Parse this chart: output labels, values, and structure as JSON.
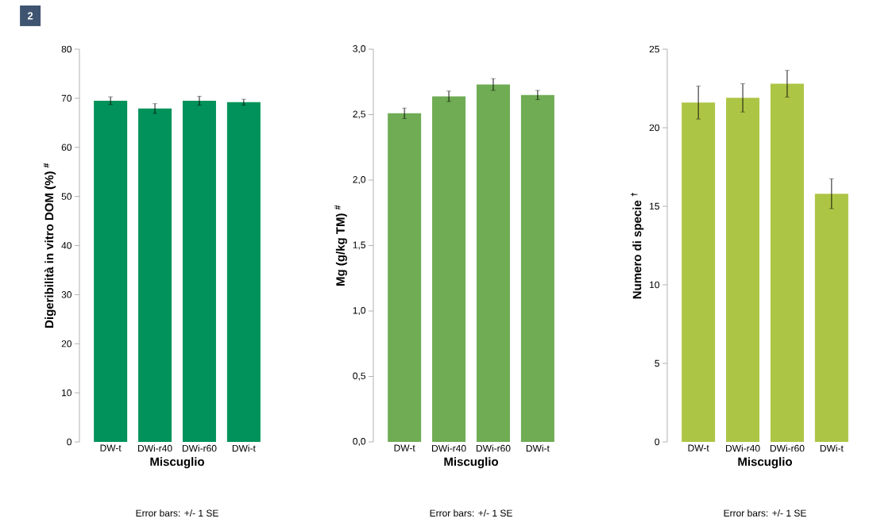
{
  "chart_data": [
    {
      "type": "bar",
      "title": "2",
      "categories": [
        "DW-t",
        "DWi-r40",
        "DWi-r60",
        "DWi-t"
      ],
      "values": [
        69.5,
        67.9,
        69.5,
        69.2
      ],
      "errors": [
        0.8,
        1.0,
        0.9,
        0.6
      ],
      "color": "#00925a",
      "ylim": [
        0,
        80
      ],
      "yticks": [
        0,
        10,
        20,
        30,
        40,
        50,
        60,
        70,
        80
      ],
      "xlabel": "Miscuglio",
      "ylabel": "Digeribilità in vitro DOM (%) $^{#}$",
      "annotations": [
        "Error bars: +/- 1 SE"
      ]
    },
    {
      "type": "bar",
      "categories": [
        "DW-t",
        "DWi-r40",
        "DWi-r60",
        "DWi-t"
      ],
      "values": [
        2.51,
        2.64,
        2.73,
        2.65
      ],
      "errors": [
        0.04,
        0.04,
        0.045,
        0.035
      ],
      "color": "#6fac54",
      "ylim": [
        0,
        3
      ],
      "yticks": [
        {
          "value": 0,
          "label": "0,0"
        },
        {
          "value": 0.5,
          "label": "0,5"
        },
        {
          "value": 1,
          "label": "1,0"
        },
        {
          "value": 1.5,
          "label": "1,5"
        },
        {
          "value": 2,
          "label": "2,0"
        },
        {
          "value": 2.5,
          "label": "2,5"
        },
        {
          "value": 3,
          "label": "3,0"
        }
      ],
      "xlabel": "Miscuglio",
      "ylabel": "Mg (g/kg TM) $^{#}$",
      "annotations": [
        "Error bars: +/- 1 SE"
      ]
    },
    {
      "type": "bar",
      "categories": [
        "DW-t",
        "DWi-r40",
        "DWi-r60",
        "DWi-t"
      ],
      "values": [
        21.6,
        21.9,
        22.8,
        15.8
      ],
      "errors": [
        1.05,
        0.9,
        0.85,
        0.95
      ],
      "color": "#adc545",
      "ylim": [
        0,
        25
      ],
      "yticks": [
        0,
        5,
        10,
        15,
        20,
        25
      ],
      "xlabel": "Miscuglio",
      "ylabel": "Numero di specie $^{†}$",
      "annotations": [
        "Error bars: +/- 1 SE"
      ]
    }
  ]
}
